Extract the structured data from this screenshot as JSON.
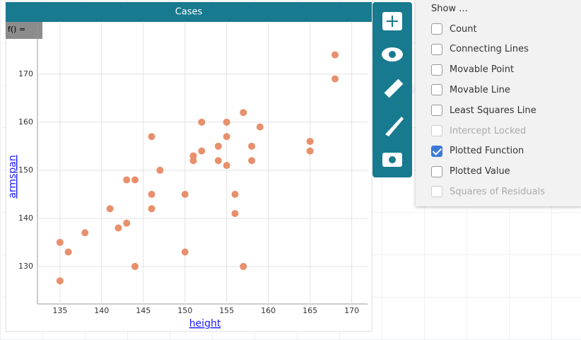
{
  "chart_data": {
    "type": "scatter",
    "title": "Cases",
    "xlabel": "height",
    "ylabel": "armspan",
    "x": [
      135,
      135,
      136,
      138,
      141,
      142,
      143,
      143,
      144,
      144,
      146,
      146,
      146,
      147,
      150,
      150,
      151,
      151,
      152,
      152,
      154,
      154,
      155,
      155,
      155,
      156,
      156,
      157,
      157,
      158,
      158,
      159,
      165,
      165,
      168,
      168
    ],
    "values": [
      135,
      127,
      133,
      137,
      142,
      138,
      139,
      148,
      148,
      130,
      157,
      145,
      142,
      150,
      145,
      133,
      153,
      152,
      160,
      154,
      155,
      152,
      160,
      157,
      151,
      145,
      141,
      162,
      130,
      155,
      152,
      159,
      156,
      154,
      174,
      169
    ],
    "color": "#e8906c",
    "xlim": [
      132.3,
      171.9
    ],
    "ylim": [
      122.2,
      180.7
    ],
    "xticks": [
      135,
      140,
      145,
      150,
      155,
      160,
      165,
      170
    ],
    "yticks": [
      130,
      140,
      150,
      160,
      170
    ],
    "grid": true
  },
  "ui": {
    "function_label": "f() =",
    "menu": {
      "title": "Show ...",
      "items": [
        {
          "label": "Count",
          "checked": false,
          "enabled": true
        },
        {
          "label": "Connecting Lines",
          "checked": false,
          "enabled": true
        },
        {
          "label": "Movable Point",
          "checked": false,
          "enabled": true
        },
        {
          "label": "Movable Line",
          "checked": false,
          "enabled": true
        },
        {
          "label": "Least Squares Line",
          "checked": false,
          "enabled": true
        },
        {
          "label": "Intercept Locked",
          "checked": false,
          "enabled": false
        },
        {
          "label": "Plotted Function",
          "checked": true,
          "enabled": true
        },
        {
          "label": "Plotted Value",
          "checked": false,
          "enabled": true
        },
        {
          "label": "Squares of Residuals",
          "checked": false,
          "enabled": false
        }
      ]
    }
  }
}
